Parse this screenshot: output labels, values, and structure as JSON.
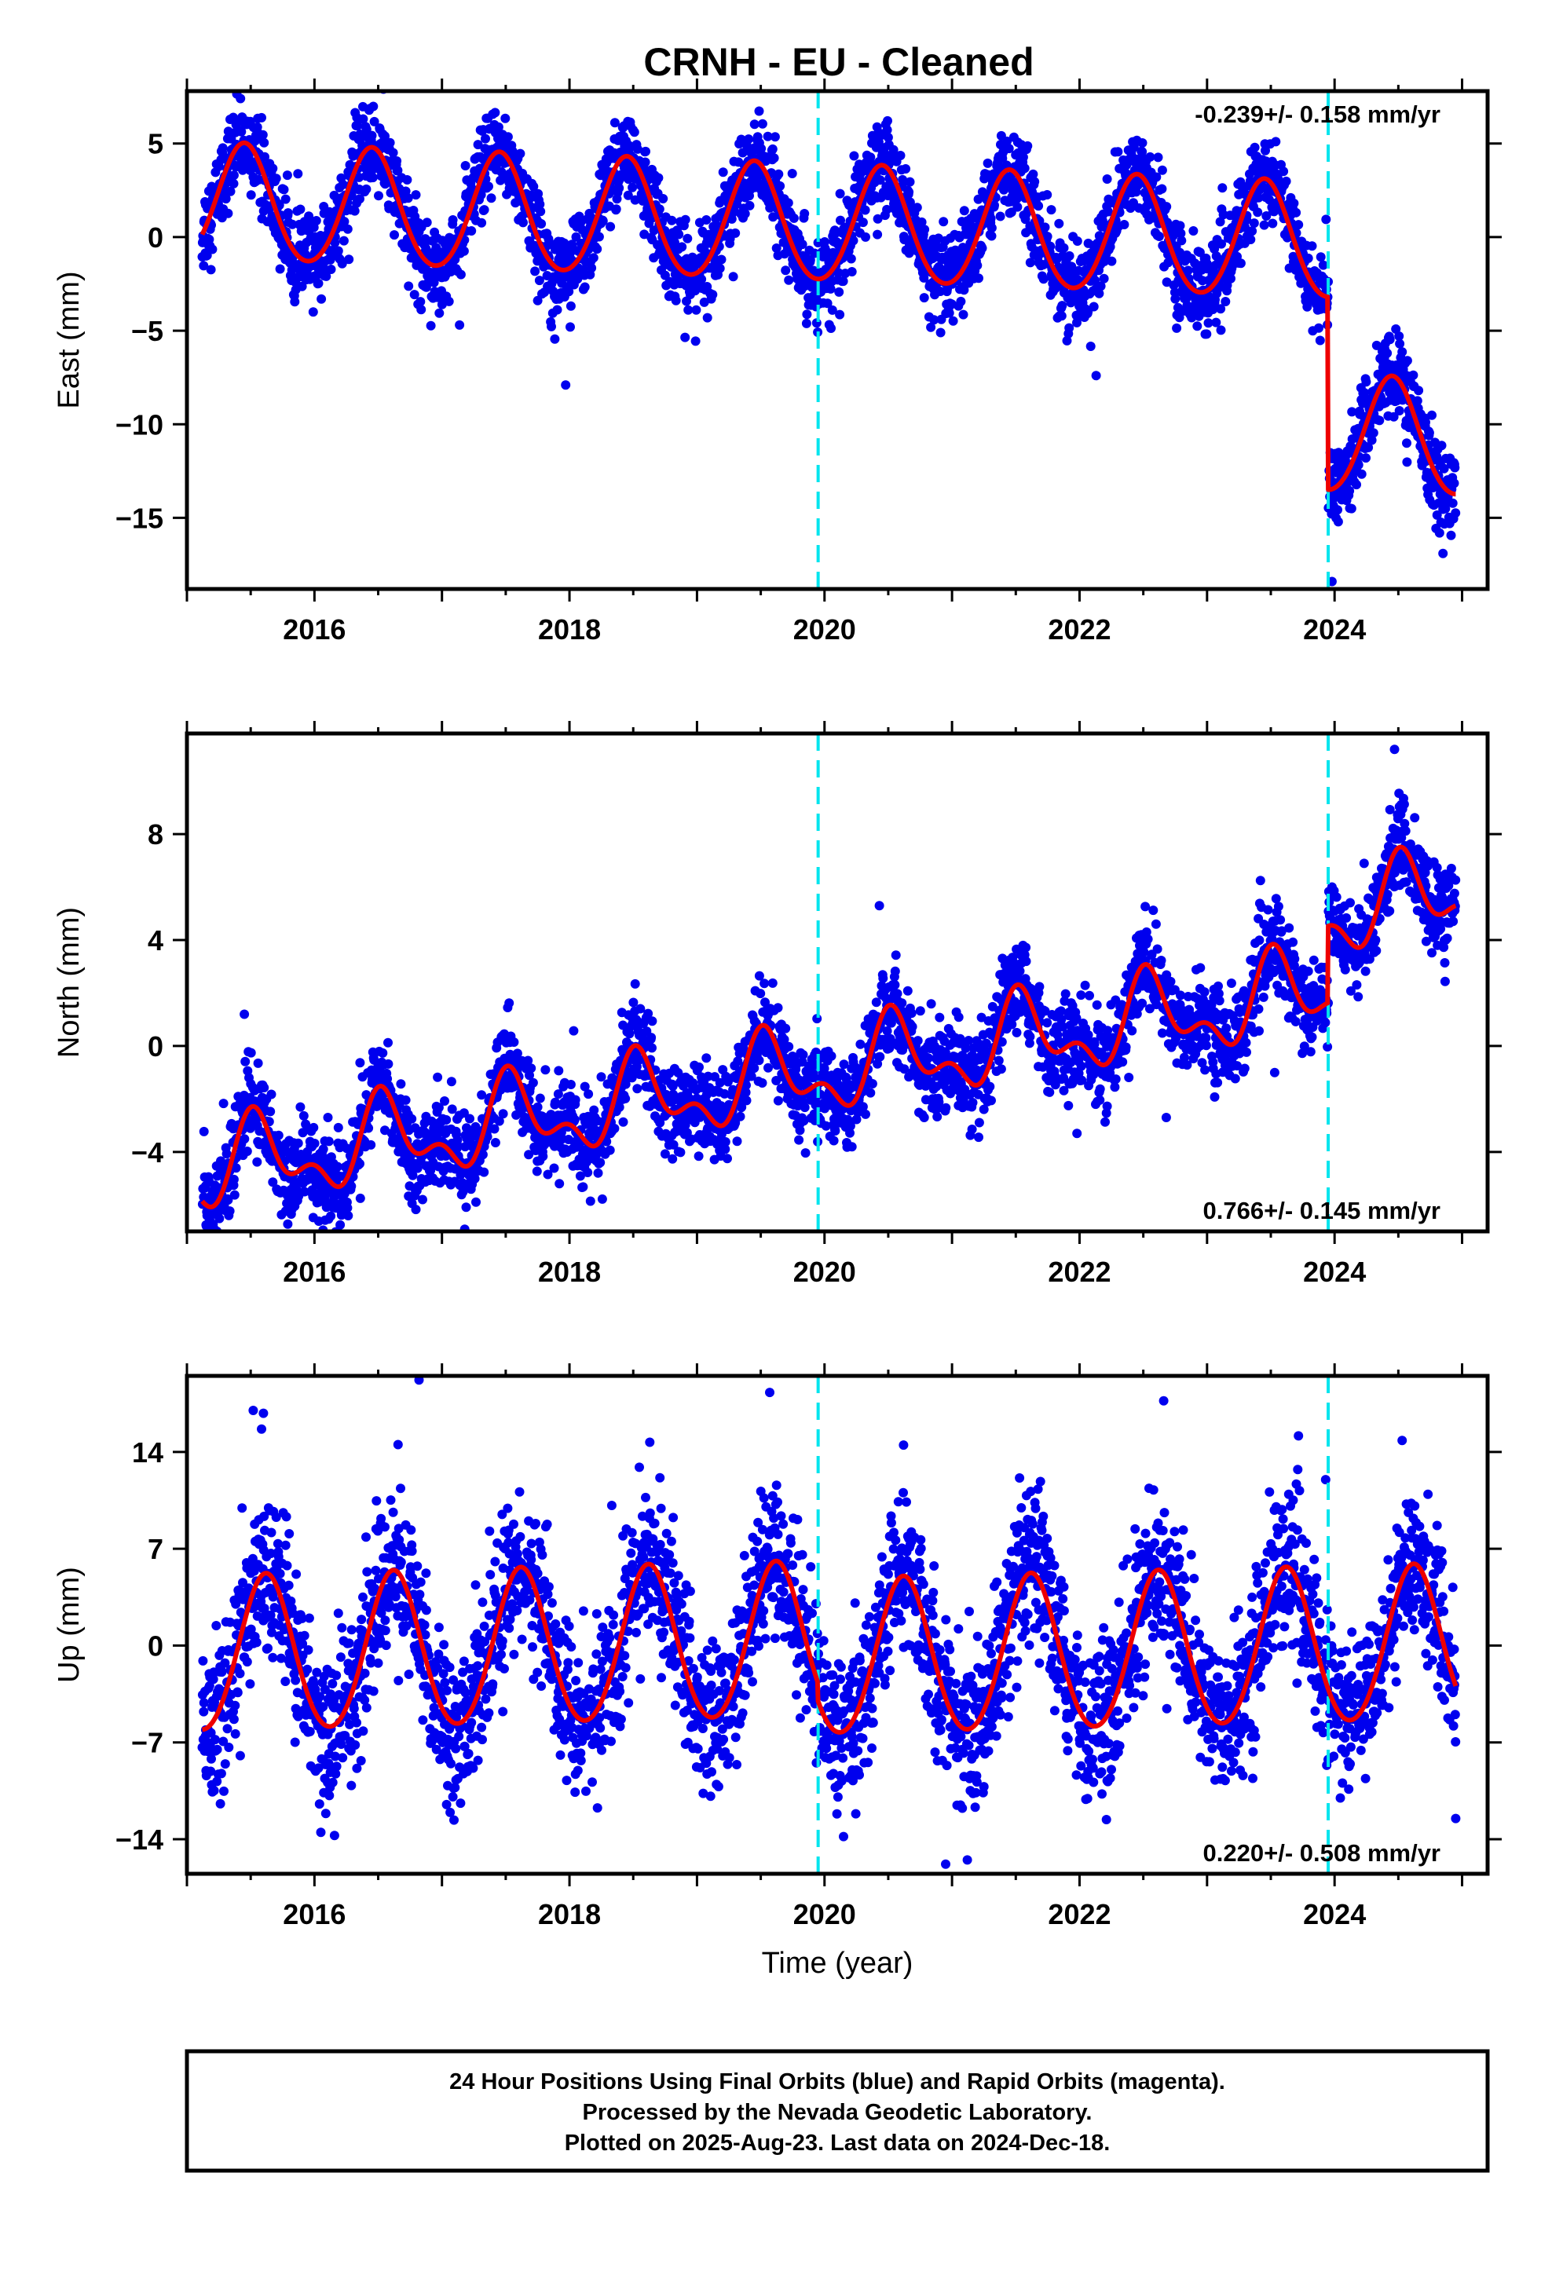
{
  "title": "CRNH  - EU - Cleaned",
  "footer": {
    "lines": [
      "24 Hour Positions Using Final Orbits (blue) and Rapid Orbits (magenta).",
      "Processed by the Nevada Geodetic Laboratory.",
      "Plotted on 2025-Aug-23. Last data on 2024-Dec-18."
    ]
  },
  "colors": {
    "points": "#0000ee",
    "model": "#ee0000",
    "event_line": "#00e5ee",
    "frame": "#000000"
  },
  "chart_data": [
    {
      "type": "scatter",
      "id": "east",
      "ylabel": "East (mm)",
      "xlabel": "",
      "rate_text": "-0.239+/- 0.158 mm/yr",
      "rate_position": "top-right",
      "xlim": [
        2015.0,
        2025.2
      ],
      "ylim": [
        -18.8,
        7.8
      ],
      "x_ticks": [
        2016,
        2018,
        2020,
        2022,
        2024
      ],
      "x_tick_labels": [
        "2016",
        "2018",
        "2020",
        "2022",
        "2024"
      ],
      "y_ticks": [
        5,
        0,
        -5,
        -10,
        -15
      ],
      "y_tick_labels": [
        "5",
        "0",
        "−5",
        "−10",
        "−15"
      ],
      "event_lines": [
        2019.95,
        2023.95
      ],
      "model": {
        "start": 2015.12,
        "end": 2024.95,
        "offset": 0.6,
        "rate": -0.239,
        "ref_year": 2020.0,
        "annual_amplitude": 3.1,
        "annual_peak": 2015.45,
        "semiannual_amplitude": 0.25,
        "semiannual_peak": 2015.45,
        "steps": [
          {
            "year": 2023.95,
            "size": -10.3
          }
        ]
      },
      "scatter_sigma": 1.15,
      "outliers": [
        {
          "x": 2015.42,
          "y": 7.4
        },
        {
          "x": 2017.97,
          "y": -7.9
        },
        {
          "x": 2022.13,
          "y": -7.4
        },
        {
          "x": 2024.85,
          "y": -16.9
        },
        {
          "x": 2023.98,
          "y": -18.4
        }
      ]
    },
    {
      "type": "scatter",
      "id": "north",
      "ylabel": "North (mm)",
      "xlabel": "",
      "rate_text": "0.766+/- 0.145 mm/yr",
      "rate_position": "bottom-right",
      "xlim": [
        2015.0,
        2025.2
      ],
      "ylim": [
        -7.0,
        11.8
      ],
      "x_ticks": [
        2016,
        2018,
        2020,
        2022,
        2024
      ],
      "x_tick_labels": [
        "2016",
        "2018",
        "2020",
        "2022",
        "2024"
      ],
      "y_ticks": [
        8,
        4,
        0,
        -4
      ],
      "y_tick_labels": [
        "8",
        "4",
        "0",
        "−4"
      ],
      "event_lines": [
        2019.95,
        2023.95
      ],
      "model": {
        "start": 2015.12,
        "end": 2024.95,
        "offset": -0.95,
        "rate": 0.766,
        "ref_year": 2020.0,
        "annual_amplitude": 1.35,
        "annual_peak": 2015.55,
        "semiannual_amplitude": 0.8,
        "semiannual_peak": 2015.5,
        "steps": [
          {
            "year": 2023.95,
            "size": 2.9
          }
        ]
      },
      "scatter_sigma": 0.85,
      "outliers": [
        {
          "x": 2024.47,
          "y": 11.2
        },
        {
          "x": 2015.45,
          "y": 1.2
        },
        {
          "x": 2020.43,
          "y": 5.3
        },
        {
          "x": 2023.53,
          "y": -1.0
        },
        {
          "x": 2021.98,
          "y": -3.3
        },
        {
          "x": 2022.68,
          "y": -2.7
        }
      ]
    },
    {
      "type": "scatter",
      "id": "up",
      "ylabel": "Up (mm)",
      "xlabel": "Time (year)",
      "rate_text": "0.220+/- 0.508 mm/yr",
      "rate_position": "bottom-right",
      "xlim": [
        2015.0,
        2025.2
      ],
      "ylim": [
        -16.5,
        19.5
      ],
      "x_ticks": [
        2016,
        2018,
        2020,
        2022,
        2024
      ],
      "x_tick_labels": [
        "2016",
        "2018",
        "2020",
        "2022",
        "2024"
      ],
      "y_ticks": [
        14,
        7,
        0,
        -7,
        -14
      ],
      "y_tick_labels": [
        "14",
        "7",
        "0",
        "−7",
        "−14"
      ],
      "event_lines": [
        2019.95,
        2023.95
      ],
      "model": {
        "start": 2015.12,
        "end": 2024.95,
        "offset": 0.2,
        "rate": 0.22,
        "ref_year": 2020.0,
        "annual_amplitude": 5.6,
        "annual_peak": 2015.62,
        "semiannual_amplitude": 0.4,
        "semiannual_peak": 2015.62,
        "steps": [
          {
            "year": 2019.95,
            "size": -1.3
          }
        ]
      },
      "scatter_sigma": 2.8,
      "outliers": [
        {
          "x": 2016.82,
          "y": 19.2
        },
        {
          "x": 2015.52,
          "y": 17.0
        },
        {
          "x": 2015.6,
          "y": 16.8
        },
        {
          "x": 2019.57,
          "y": 18.3
        },
        {
          "x": 2022.66,
          "y": 17.7
        },
        {
          "x": 2016.05,
          "y": -13.5
        },
        {
          "x": 2020.95,
          "y": -15.8
        },
        {
          "x": 2021.12,
          "y": -15.5
        },
        {
          "x": 2024.95,
          "y": -12.5
        },
        {
          "x": 2023.93,
          "y": 12.0
        },
        {
          "x": 2020.62,
          "y": 14.5
        },
        {
          "x": 2018.63,
          "y": 14.7
        }
      ]
    }
  ]
}
